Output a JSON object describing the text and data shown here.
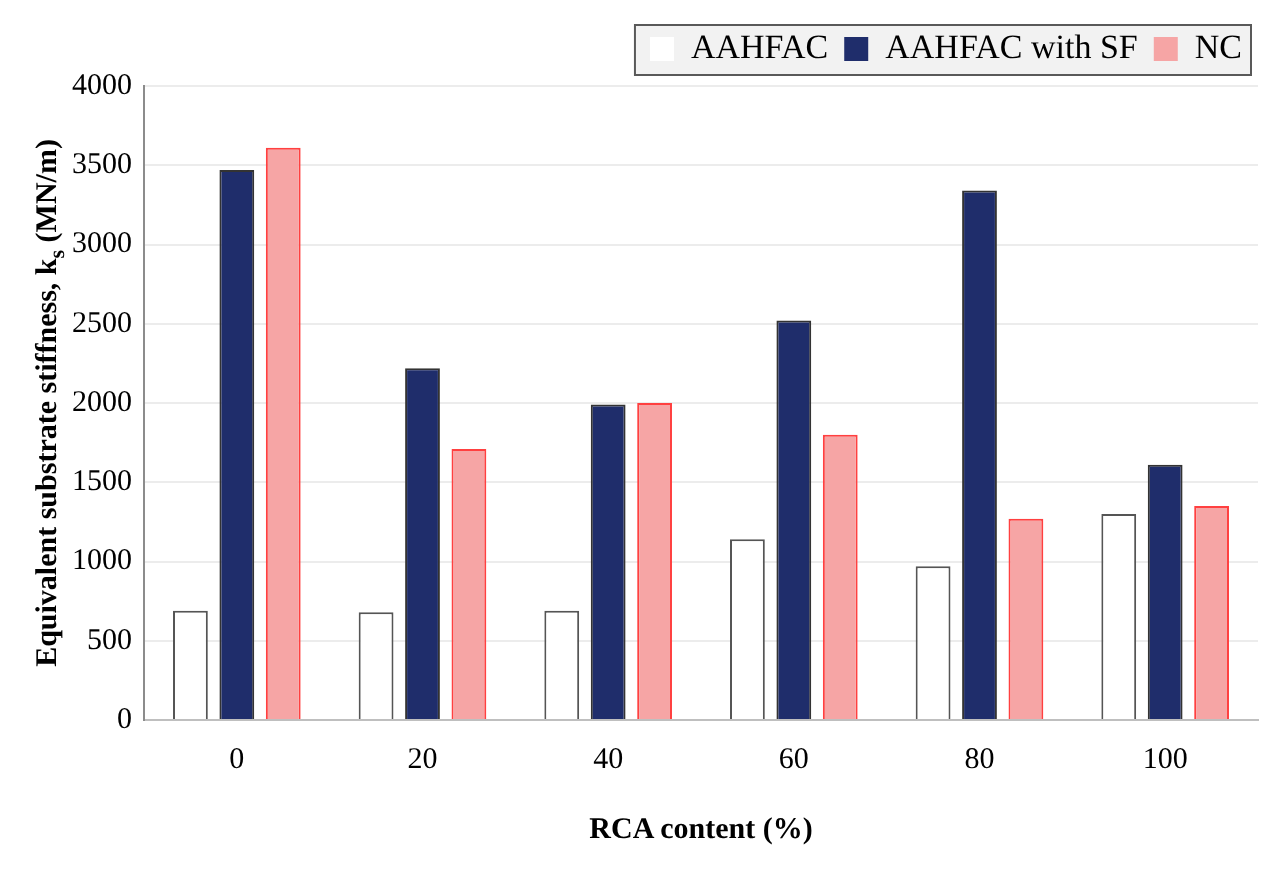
{
  "chart_data": {
    "type": "bar",
    "xlabel": "RCA content (%)",
    "ylabel": "Equivalent substrate stiffness, k$_{s}$ (MN/m)",
    "categories": [
      "0",
      "20",
      "40",
      "60",
      "80",
      "100"
    ],
    "series": [
      {
        "name": "AAHFAC",
        "color": "#ffffff",
        "values": [
          690,
          680,
          690,
          1140,
          970,
          1300
        ]
      },
      {
        "name": "AAHFAC with SF",
        "color": "#1f2d6b",
        "values": [
          3470,
          2220,
          1990,
          2520,
          3340,
          1610
        ]
      },
      {
        "name": "NC",
        "color": "#f6a5a5",
        "values": [
          3610,
          1710,
          2000,
          1800,
          1270,
          1350
        ]
      }
    ],
    "ylim": [
      0,
      4000
    ],
    "yticks": [
      0,
      500,
      1000,
      1500,
      2000,
      2500,
      3000,
      3500,
      4000
    ],
    "grid": "y",
    "legend": "top right"
  }
}
